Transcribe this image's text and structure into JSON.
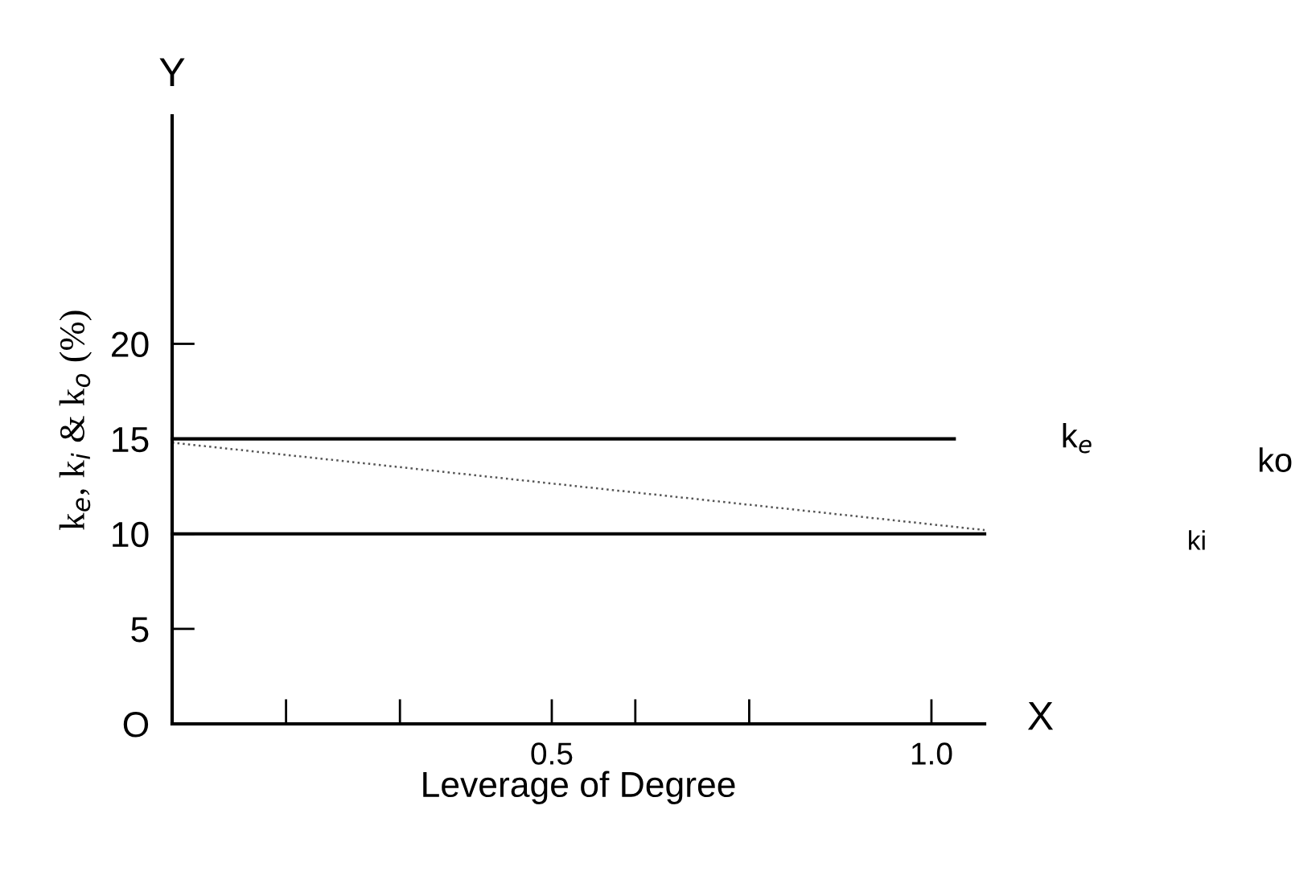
{
  "chart_data": {
    "type": "line",
    "xlabel": "Leverage of Degree",
    "ylabel": "k$_{e}$, k$_{i}$ & k$_{o}$ (%)",
    "annotations": [
      "Y",
      "X"
    ],
    "series": [
      {
        "name": "k$_{e}$",
        "color": "#000000",
        "x": [
          0,
          1.03
        ],
        "values": [
          15,
          15
        ],
        "line_style": "solid"
      },
      {
        "name": "ki",
        "color": "#000000",
        "x": [
          0,
          1.07
        ],
        "values": [
          10,
          10
        ],
        "line_style": "solid"
      },
      {
        "name": "ko",
        "color": "#555555",
        "x": [
          0,
          1.07
        ],
        "values": [
          14.8,
          10.2
        ],
        "line_style": "dotted"
      }
    ],
    "xlim": [
      0,
      1.07
    ],
    "ylim": [
      0,
      32
    ],
    "xticks": [
      {
        "value": 0.15,
        "label": null
      },
      {
        "value": 0.3,
        "label": null
      },
      0.5,
      {
        "value": 0.61,
        "label": null
      },
      {
        "value": 0.76,
        "label": null
      },
      {
        "value": 1.0,
        "label": "1.0"
      }
    ],
    "yticks": [
      {
        "value": 0,
        "label": "O"
      },
      5,
      10,
      15,
      20
    ],
    "grid": false,
    "legend": false,
    "marker": "none"
  }
}
